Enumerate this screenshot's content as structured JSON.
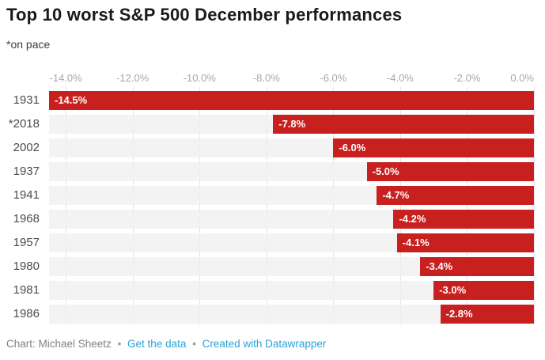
{
  "header": {
    "title": "Top 10 worst S&P 500 December performances",
    "subtitle": "*on pace"
  },
  "footer": {
    "credit": "Chart: Michael Sheetz",
    "separator": "•",
    "links": [
      {
        "label": "Get the data"
      },
      {
        "label": "Created with Datawrapper"
      }
    ],
    "link_color": "#28a3d8"
  },
  "chart_data": {
    "type": "bar",
    "orientation": "horizontal",
    "title": "Top 10 worst S&P 500 December performances",
    "subtitle": "*on pace",
    "categories": [
      "1931",
      "*2018",
      "2002",
      "1937",
      "1941",
      "1968",
      "1957",
      "1980",
      "1981",
      "1986"
    ],
    "values": [
      -14.5,
      -7.8,
      -6.0,
      -5.0,
      -4.7,
      -4.2,
      -4.1,
      -3.4,
      -3.0,
      -2.8
    ],
    "value_labels": [
      "-14.5%",
      "-7.8%",
      "-6.0%",
      "-5.0%",
      "-4.7%",
      "-4.2%",
      "-4.1%",
      "-3.4%",
      "-3.0%",
      "-2.8%"
    ],
    "x_tick_labels": [
      "-14.0%",
      "-12.0%",
      "-10.0%",
      "-8.0%",
      "-6.0%",
      "-4.0%",
      "-2.0%",
      "0.0%"
    ],
    "x_tick_values": [
      -14,
      -12,
      -10,
      -8,
      -6,
      -4,
      -2,
      0
    ],
    "xlim": [
      -14.5,
      0
    ],
    "grid": true,
    "legend": "none",
    "bar_color": "#c8201f",
    "track_color": "#f0f0f0",
    "value_label_color": "#ffffff"
  }
}
